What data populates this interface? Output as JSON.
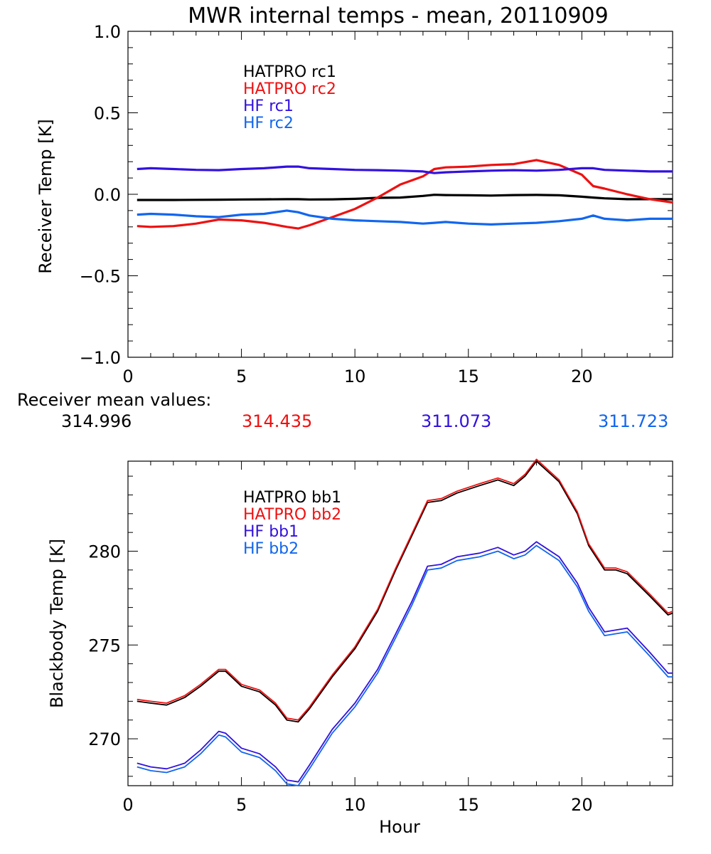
{
  "colors": {
    "black": "#000000",
    "red": "#ee1111",
    "purple": "#3311dd",
    "blue": "#1166ee"
  },
  "chart_data": [
    {
      "type": "line",
      "title": "MWR internal temps - mean, 20110909",
      "ylabel": "Receiver Temp [K]",
      "xlabel": "",
      "xlim": [
        0,
        24
      ],
      "ylim": [
        -1.0,
        1.0
      ],
      "xticks": [
        "0",
        "5",
        "10",
        "15",
        "20"
      ],
      "yticks": [
        "1.0",
        "0.5",
        "0.0",
        "-0.5",
        "-1.0"
      ],
      "grid": false,
      "legend_position": "top-left",
      "x": [
        0.4,
        1.0,
        2.0,
        3.0,
        4.0,
        5.0,
        6.0,
        7.0,
        7.5,
        8.0,
        9.0,
        10.0,
        11.0,
        12.0,
        13.0,
        13.5,
        14.0,
        15.0,
        16.0,
        17.0,
        18.0,
        19.0,
        20.0,
        20.5,
        21.0,
        22.0,
        23.0,
        24.0
      ],
      "series": [
        {
          "name": "HATPRO rc1",
          "color": "#000000",
          "values": [
            -0.035,
            -0.035,
            -0.035,
            -0.034,
            -0.033,
            -0.032,
            -0.031,
            -0.03,
            -0.03,
            -0.032,
            -0.031,
            -0.028,
            -0.022,
            -0.02,
            -0.01,
            -0.003,
            -0.005,
            -0.006,
            -0.008,
            -0.005,
            -0.004,
            -0.006,
            -0.015,
            -0.02,
            -0.025,
            -0.03,
            -0.03,
            -0.03
          ]
        },
        {
          "name": "HATPRO rc2",
          "color": "#ee1111",
          "values": [
            -0.195,
            -0.2,
            -0.195,
            -0.18,
            -0.155,
            -0.16,
            -0.175,
            -0.2,
            -0.21,
            -0.19,
            -0.14,
            -0.09,
            -0.02,
            0.06,
            0.11,
            0.155,
            0.165,
            0.17,
            0.18,
            0.185,
            0.21,
            0.18,
            0.12,
            0.05,
            0.035,
            0.0,
            -0.03,
            -0.05
          ]
        },
        {
          "name": "HF rc1",
          "color": "#3311dd",
          "values": [
            0.155,
            0.16,
            0.155,
            0.15,
            0.148,
            0.155,
            0.16,
            0.17,
            0.17,
            0.16,
            0.155,
            0.15,
            0.148,
            0.145,
            0.14,
            0.13,
            0.135,
            0.14,
            0.145,
            0.148,
            0.145,
            0.15,
            0.16,
            0.16,
            0.15,
            0.145,
            0.14,
            0.14
          ]
        },
        {
          "name": "HF rc2",
          "color": "#1166ee",
          "values": [
            -0.125,
            -0.12,
            -0.125,
            -0.135,
            -0.14,
            -0.125,
            -0.12,
            -0.1,
            -0.11,
            -0.13,
            -0.15,
            -0.16,
            -0.165,
            -0.17,
            -0.18,
            -0.175,
            -0.17,
            -0.18,
            -0.185,
            -0.18,
            -0.175,
            -0.165,
            -0.15,
            -0.13,
            -0.15,
            -0.16,
            -0.15,
            -0.15
          ]
        }
      ]
    },
    {
      "type": "line",
      "title": "",
      "ylabel": "Blackbody Temp [K]",
      "xlabel": "Hour",
      "xlim": [
        0,
        24
      ],
      "ylim": [
        267.5,
        284.8
      ],
      "xticks": [
        "0",
        "5",
        "10",
        "15",
        "20"
      ],
      "yticks": [
        "280",
        "275",
        "270"
      ],
      "grid": false,
      "legend_position": "top-left",
      "x": [
        0.4,
        1.0,
        1.7,
        2.5,
        3.2,
        4.0,
        4.3,
        5.0,
        5.8,
        6.5,
        7.0,
        7.5,
        8.0,
        9.0,
        10.0,
        11.0,
        11.8,
        12.5,
        13.2,
        13.8,
        14.5,
        15.5,
        16.3,
        17.0,
        17.5,
        18.0,
        19.0,
        19.8,
        20.3,
        21.0,
        21.5,
        22.0,
        23.0,
        23.8,
        24.0
      ],
      "series": [
        {
          "name": "HATPRO bb1",
          "color": "#000000",
          "values": [
            272.0,
            271.9,
            271.8,
            272.2,
            272.8,
            273.6,
            273.6,
            272.8,
            272.5,
            271.8,
            271.0,
            270.9,
            271.6,
            273.3,
            274.8,
            276.8,
            279.0,
            280.8,
            282.6,
            282.7,
            283.1,
            283.5,
            283.8,
            283.5,
            284.0,
            284.8,
            283.7,
            282.0,
            280.3,
            279.0,
            279.0,
            278.8,
            277.6,
            276.6,
            276.7
          ]
        },
        {
          "name": "HATPRO bb2",
          "color": "#ee1111",
          "values": [
            272.1,
            272.0,
            271.9,
            272.3,
            272.9,
            273.7,
            273.7,
            272.9,
            272.6,
            271.9,
            271.1,
            271.0,
            271.7,
            273.4,
            274.9,
            276.9,
            279.1,
            280.9,
            282.7,
            282.8,
            283.2,
            283.6,
            283.9,
            283.6,
            284.1,
            284.9,
            283.8,
            282.1,
            280.4,
            279.1,
            279.1,
            278.9,
            277.7,
            276.7,
            276.8
          ]
        },
        {
          "name": "HF bb1",
          "color": "#3311dd",
          "values": [
            268.7,
            268.5,
            268.4,
            268.7,
            269.4,
            270.4,
            270.3,
            269.5,
            269.2,
            268.5,
            267.8,
            267.7,
            268.6,
            270.5,
            271.9,
            273.7,
            275.6,
            277.3,
            279.2,
            279.3,
            279.7,
            279.9,
            280.2,
            279.8,
            280.0,
            280.5,
            279.7,
            278.3,
            277.0,
            275.7,
            275.8,
            275.9,
            274.6,
            273.5,
            273.5
          ]
        },
        {
          "name": "HF bb2",
          "color": "#1166ee",
          "values": [
            268.5,
            268.3,
            268.2,
            268.5,
            269.2,
            270.2,
            270.1,
            269.3,
            269.0,
            268.3,
            267.6,
            267.5,
            268.4,
            270.3,
            271.7,
            273.5,
            275.4,
            277.1,
            279.0,
            279.1,
            279.5,
            279.7,
            280.0,
            279.6,
            279.8,
            280.3,
            279.5,
            278.1,
            276.8,
            275.5,
            275.6,
            275.7,
            274.4,
            273.3,
            273.3
          ]
        }
      ]
    }
  ],
  "mean_values": {
    "label": "Receiver mean values:",
    "items": [
      {
        "value": "314.996",
        "color": "#000000"
      },
      {
        "value": "314.435",
        "color": "#ee1111"
      },
      {
        "value": "311.073",
        "color": "#3311dd"
      },
      {
        "value": "311.723",
        "color": "#1166ee"
      }
    ]
  }
}
